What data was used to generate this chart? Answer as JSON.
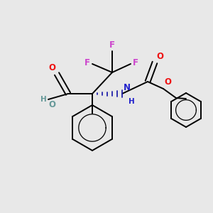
{
  "background_color": "#e8e8e8",
  "figsize": [
    3.0,
    3.0
  ],
  "dpi": 100,
  "colors": {
    "C": "#000000",
    "O": "#ee1111",
    "N": "#2222cc",
    "F": "#cc44cc",
    "HO": "#669999",
    "bond": "#000000",
    "wedge": "#2222aa"
  },
  "lw": 1.4,
  "fs": 8.5
}
